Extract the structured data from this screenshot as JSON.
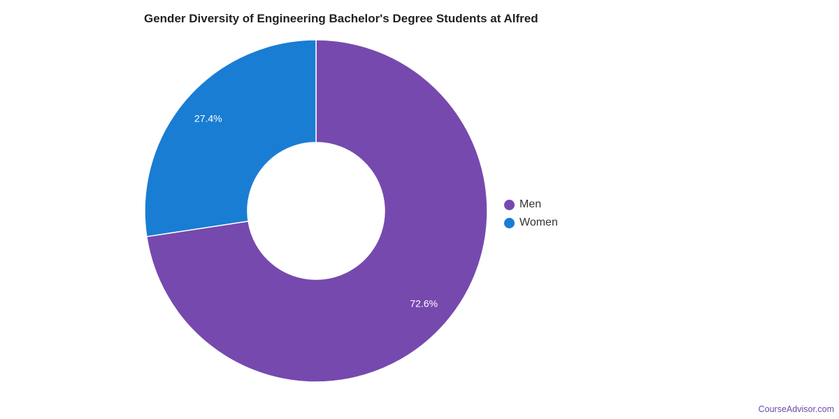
{
  "chart_data": {
    "type": "pie",
    "title": "Gender Diversity of Engineering Bachelor's Degree Students at Alfred",
    "donut": true,
    "categories": [
      "Men",
      "Women"
    ],
    "values": [
      72.6,
      27.4
    ],
    "value_labels": [
      "72.6%",
      "27.4%"
    ],
    "colors": [
      "#7649ae",
      "#197dd4"
    ],
    "legend": {
      "placement": "right",
      "entries": [
        "Men",
        "Women"
      ]
    }
  },
  "watermark": "CourseAdvisor.com"
}
